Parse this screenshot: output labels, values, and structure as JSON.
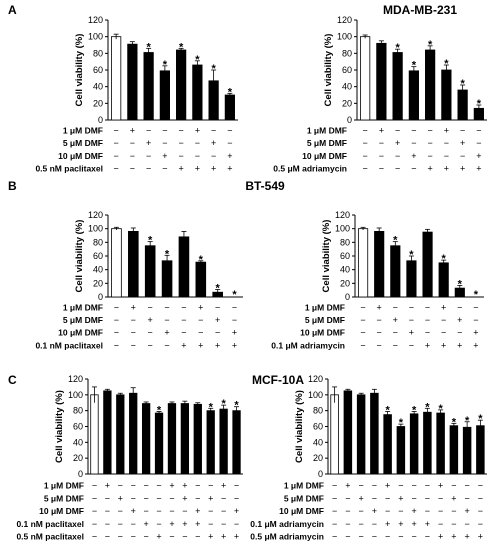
{
  "chart_data": [
    {
      "type": "bar",
      "panel": "A",
      "cell_line": "MDA-MB-231",
      "ylabel": "Cell viability (%)",
      "ylim": [
        0,
        120
      ],
      "yticks": [
        "0",
        "20",
        "40",
        "60",
        "80",
        "100",
        "120"
      ],
      "values": [
        100,
        91,
        81,
        59,
        84,
        66,
        47,
        30
      ],
      "errors": [
        3,
        3,
        5,
        6,
        2,
        5,
        13,
        2
      ],
      "significant": [
        false,
        false,
        true,
        true,
        true,
        true,
        true,
        true
      ],
      "condition_rows": [
        {
          "label": "1 μM DMF",
          "marks": [
            "−",
            "+",
            "−",
            "−",
            "−",
            "+",
            "−",
            "−"
          ]
        },
        {
          "label": "5 μM DMF",
          "marks": [
            "−",
            "−",
            "+",
            "−",
            "−",
            "−",
            "+",
            "−"
          ]
        },
        {
          "label": "10 μM DMF",
          "marks": [
            "−",
            "−",
            "−",
            "+",
            "−",
            "−",
            "−",
            "+"
          ]
        },
        {
          "label": "0.5 nM paclitaxel",
          "marks": [
            "−",
            "−",
            "−",
            "−",
            "+",
            "+",
            "+",
            "+"
          ]
        }
      ]
    },
    {
      "type": "bar",
      "panel": "A",
      "ylabel": "Cell viability (%)",
      "ylim": [
        0,
        120
      ],
      "yticks": [
        "0",
        "20",
        "40",
        "60",
        "80",
        "100",
        "120"
      ],
      "values": [
        100,
        92,
        81,
        59,
        84,
        60,
        36,
        14
      ],
      "errors": [
        2,
        3,
        4,
        5,
        5,
        6,
        6,
        4
      ],
      "significant": [
        false,
        false,
        true,
        true,
        true,
        true,
        true,
        true
      ],
      "condition_rows": [
        {
          "label": "1 μM DMF",
          "marks": [
            "−",
            "+",
            "−",
            "−",
            "−",
            "+",
            "−",
            "−"
          ]
        },
        {
          "label": "5 μM DMF",
          "marks": [
            "−",
            "−",
            "+",
            "−",
            "−",
            "−",
            "+",
            "−"
          ]
        },
        {
          "label": "10 μM DMF",
          "marks": [
            "−",
            "−",
            "−",
            "+",
            "−",
            "−",
            "−",
            "+"
          ]
        },
        {
          "label": "0.5 μM adriamycin",
          "marks": [
            "−",
            "−",
            "−",
            "−",
            "+",
            "+",
            "+",
            "+"
          ]
        }
      ]
    },
    {
      "type": "bar",
      "panel": "B",
      "cell_line": "BT-549",
      "ylabel": "Cell viability (%)",
      "ylim": [
        0,
        120
      ],
      "yticks": [
        "0",
        "20",
        "40",
        "60",
        "80",
        "100",
        "120"
      ],
      "values": [
        100,
        96,
        75,
        53,
        88,
        51,
        7,
        0
      ],
      "errors": [
        2,
        5,
        6,
        8,
        8,
        2,
        4,
        0
      ],
      "significant": [
        false,
        false,
        true,
        true,
        false,
        true,
        true,
        true
      ],
      "condition_rows": [
        {
          "label": "1 μM DMF",
          "marks": [
            "−",
            "+",
            "−",
            "−",
            "−",
            "+",
            "−",
            "−"
          ]
        },
        {
          "label": "5 μM DMF",
          "marks": [
            "−",
            "−",
            "+",
            "−",
            "−",
            "−",
            "+",
            "−"
          ]
        },
        {
          "label": "10 μM DMF",
          "marks": [
            "−",
            "−",
            "−",
            "+",
            "−",
            "−",
            "−",
            "+"
          ]
        },
        {
          "label": "0.1 nM paclitaxel",
          "marks": [
            "−",
            "−",
            "−",
            "−",
            "+",
            "+",
            "+",
            "+"
          ]
        }
      ]
    },
    {
      "type": "bar",
      "panel": "B",
      "ylabel": "Cell viability (%)",
      "ylim": [
        0,
        120
      ],
      "yticks": [
        "0",
        "20",
        "40",
        "60",
        "80",
        "100",
        "120"
      ],
      "values": [
        100,
        96,
        75,
        53,
        95,
        50,
        13,
        0
      ],
      "errors": [
        2,
        5,
        6,
        7,
        4,
        4,
        4,
        0
      ],
      "significant": [
        false,
        false,
        true,
        true,
        false,
        true,
        true,
        true
      ],
      "condition_rows": [
        {
          "label": "1 μM DMF",
          "marks": [
            "−",
            "+",
            "−",
            "−",
            "−",
            "+",
            "−",
            "−"
          ]
        },
        {
          "label": "5 μM DMF",
          "marks": [
            "−",
            "−",
            "+",
            "−",
            "−",
            "−",
            "+",
            "−"
          ]
        },
        {
          "label": "10 μM DMF",
          "marks": [
            "−",
            "−",
            "−",
            "+",
            "−",
            "−",
            "−",
            "+"
          ]
        },
        {
          "label": "0.1 μM adriamycin",
          "marks": [
            "−",
            "−",
            "−",
            "−",
            "+",
            "+",
            "+",
            "+"
          ]
        }
      ]
    },
    {
      "type": "bar",
      "panel": "C",
      "cell_line": "MCF-10A",
      "ylabel": "Cell viability (%)",
      "ylim": [
        0,
        120
      ],
      "yticks": [
        "0",
        "20",
        "40",
        "60",
        "80",
        "100",
        "120"
      ],
      "values": [
        100,
        105,
        100,
        102,
        89,
        77,
        89,
        89,
        88,
        80,
        82,
        80
      ],
      "errors": [
        10,
        2,
        2,
        7,
        2,
        2,
        2,
        3,
        2,
        3,
        5,
        5
      ],
      "significant": [
        false,
        false,
        false,
        false,
        false,
        true,
        false,
        false,
        false,
        true,
        true,
        true
      ],
      "condition_rows": [
        {
          "label": "1 μM DMF",
          "marks": [
            "−",
            "+",
            "−",
            "−",
            "−",
            "−",
            "+",
            "+",
            "−",
            "−",
            "+",
            "−"
          ]
        },
        {
          "label": "5 μM DMF",
          "marks": [
            "−",
            "−",
            "+",
            "−",
            "−",
            "−",
            "−",
            "+",
            "−",
            "+",
            "−",
            "−"
          ]
        },
        {
          "label": "10 μM DMF",
          "marks": [
            "−",
            "−",
            "−",
            "+",
            "−",
            "−",
            "−",
            "−",
            "+",
            "−",
            "−",
            "+"
          ]
        },
        {
          "label": "0.1 nM paclitaxel",
          "marks": [
            "−",
            "−",
            "−",
            "−",
            "+",
            "−",
            "+",
            "+",
            "+",
            "−",
            "−",
            "−"
          ]
        },
        {
          "label": "0.5 nM paclitaxel",
          "marks": [
            "−",
            "−",
            "−",
            "−",
            "−",
            "+",
            "−",
            "−",
            "−",
            "+",
            "+",
            "+"
          ]
        }
      ]
    },
    {
      "type": "bar",
      "panel": "C",
      "ylabel": "Cell viability (%)",
      "ylim": [
        0,
        120
      ],
      "yticks": [
        "0",
        "20",
        "40",
        "60",
        "80",
        "100",
        "120"
      ],
      "values": [
        100,
        105,
        100,
        102,
        75,
        60,
        76,
        78,
        77,
        61,
        59,
        61
      ],
      "errors": [
        10,
        2,
        2,
        5,
        4,
        3,
        3,
        5,
        4,
        3,
        7,
        7
      ],
      "significant": [
        false,
        false,
        false,
        false,
        true,
        true,
        true,
        true,
        true,
        true,
        true,
        true
      ],
      "condition_rows": [
        {
          "label": "1 μM DMF",
          "marks": [
            "−",
            "+",
            "−",
            "−",
            "+",
            "−",
            "−",
            "−",
            "+",
            "−",
            "−",
            "−"
          ]
        },
        {
          "label": "5 μM DMF",
          "marks": [
            "−",
            "−",
            "+",
            "−",
            "−",
            "+",
            "−",
            "−",
            "−",
            "+",
            "−",
            "−"
          ]
        },
        {
          "label": "10 μM DMF",
          "marks": [
            "−",
            "−",
            "−",
            "+",
            "−",
            "−",
            "+",
            "−",
            "−",
            "−",
            "+",
            "−"
          ]
        },
        {
          "label": "0.1 μM adriamycin",
          "marks": [
            "−",
            "−",
            "−",
            "−",
            "+",
            "+",
            "+",
            "+",
            "−",
            "−",
            "−",
            "−"
          ]
        },
        {
          "label": "0.5 μM adriamycin",
          "marks": [
            "−",
            "−",
            "−",
            "−",
            "−",
            "−",
            "−",
            "−",
            "+",
            "+",
            "+",
            "+"
          ]
        }
      ]
    }
  ],
  "annotation": {
    "significance_marker": "*"
  },
  "colors": {
    "control_bar": "#ffffff",
    "treated_bar": "#000000",
    "axis": "#000000"
  }
}
